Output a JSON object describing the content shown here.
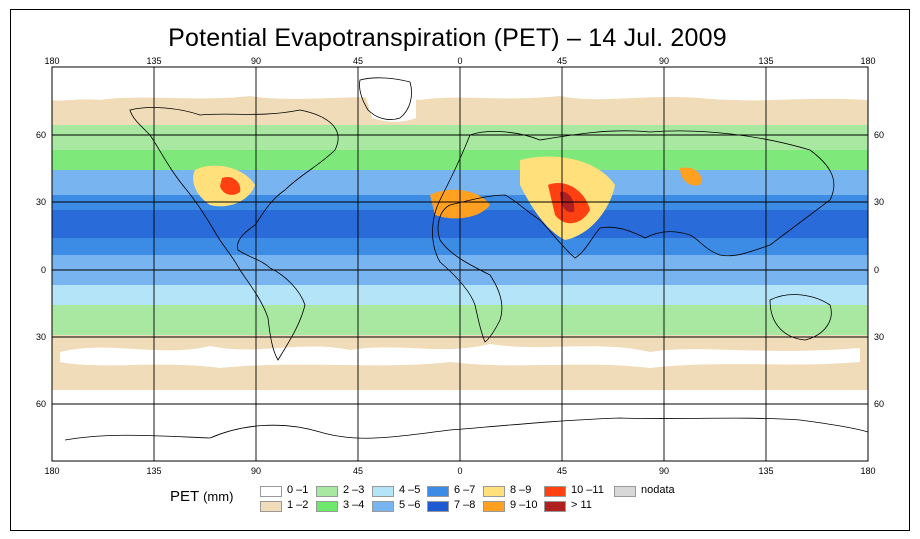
{
  "title": "Potential Evapotranspiration (PET) – 14 Jul. 2009",
  "lon_ticks": [
    "180",
    "135",
    "90",
    "45",
    "0",
    "45",
    "90",
    "135",
    "180"
  ],
  "lat_ticks": [
    "60",
    "30",
    "0",
    "30",
    "60"
  ],
  "legend": {
    "title": "PET",
    "unit": "(mm)",
    "classes": [
      {
        "label": "0 –1",
        "color": "#ffffff"
      },
      {
        "label": "1 –2",
        "color": "#f0dcb8"
      },
      {
        "label": "2 –3",
        "color": "#a8e8a0"
      },
      {
        "label": "3 –4",
        "color": "#6ee86a"
      },
      {
        "label": "4 –5",
        "color": "#b4e4f8"
      },
      {
        "label": "5 –6",
        "color": "#78b4f0"
      },
      {
        "label": "6 –7",
        "color": "#3c8ce6"
      },
      {
        "label": "7 –8",
        "color": "#1e5ad2"
      },
      {
        "label": "8 –9",
        "color": "#ffe07a"
      },
      {
        "label": "9 –10",
        "color": "#ffa020"
      },
      {
        "label": "10 –11",
        "color": "#ff4010"
      },
      {
        "label": "> 11",
        "color": "#b02020"
      },
      {
        "label": "nodata",
        "color": "#d8d8d8"
      }
    ]
  }
}
